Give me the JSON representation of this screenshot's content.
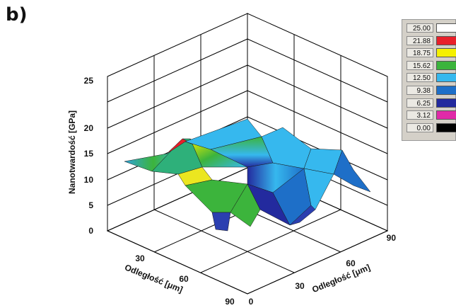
{
  "panel_label": "b)",
  "legend": {
    "items": [
      {
        "value": "25.00",
        "color": "#ffffff"
      },
      {
        "value": "21.88",
        "color": "#e8202a"
      },
      {
        "value": "18.75",
        "color": "#f5f000"
      },
      {
        "value": "15.62",
        "color": "#3cb43c"
      },
      {
        "value": "12.50",
        "color": "#36b8ee"
      },
      {
        "value": "9.38",
        "color": "#1e6fc8"
      },
      {
        "value": "6.25",
        "color": "#232a9e"
      },
      {
        "value": "3.12",
        "color": "#e02aa8"
      },
      {
        "value": "0.00",
        "color": "#000000"
      }
    ]
  },
  "chart_data": {
    "type": "surface3d",
    "title": "",
    "zlabel": "Nanotwardość [GPa]",
    "xlabel": "Odległość [μm]",
    "ylabel": "Odległość [μm]",
    "z_ticks": [
      "0",
      "5",
      "10",
      "15",
      "20",
      "25"
    ],
    "x_ticks": [
      "30",
      "60",
      "90"
    ],
    "y_ticks": [
      "0",
      "30",
      "60",
      "90"
    ],
    "zlim": [
      0,
      25
    ],
    "x": [
      0,
      30,
      60,
      90
    ],
    "y": [
      0,
      30,
      60,
      90
    ],
    "z_grid": [
      [
        8,
        9,
        10,
        11
      ],
      [
        19,
        16,
        15,
        11
      ],
      [
        1,
        4,
        16,
        13
      ],
      [
        9,
        6,
        9,
        11
      ]
    ]
  }
}
